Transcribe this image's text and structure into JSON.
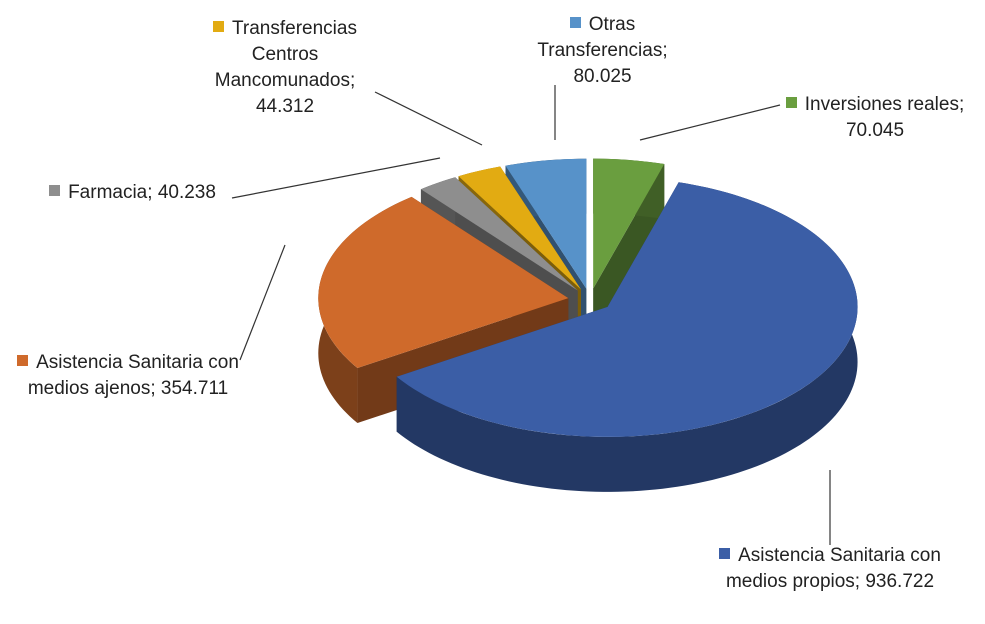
{
  "chart_data": {
    "type": "pie3d",
    "categories": [
      "Inversiones reales",
      "Asistencia Sanitaria con medios propios",
      "Asistencia Sanitaria con medios ajenos",
      "Farmacia",
      "Transferencias Centros Mancomunados",
      "Otras Transferencias"
    ],
    "values": [
      70045,
      936722,
      354711,
      40238,
      44312,
      80025
    ],
    "value_labels": [
      "70.045",
      "936.722",
      "354.711",
      "40.238",
      "44.312",
      "80.025"
    ],
    "separator": ";",
    "colors": [
      "#6a9e3f",
      "#3b5ea6",
      "#cf6a2b",
      "#8e8e8e",
      "#e2ab12",
      "#5792c9"
    ]
  }
}
